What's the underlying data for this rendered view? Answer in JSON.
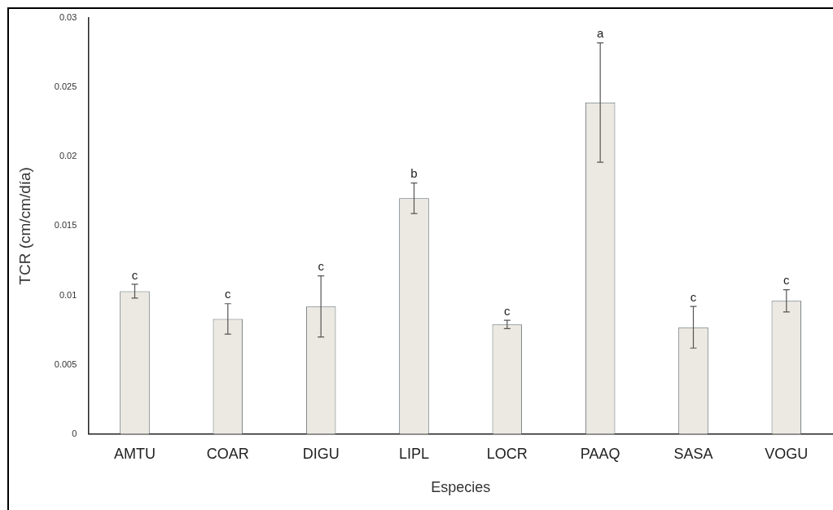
{
  "chart_data": {
    "type": "bar",
    "xlabel": "Especies",
    "ylabel": "TCR (cm/cm/día)",
    "categories": [
      "AMTU",
      "COAR",
      "DIGU",
      "LIPL",
      "LOCR",
      "PAAQ",
      "SASA",
      "VOGU"
    ],
    "series": [
      {
        "color": "#ebe9e1",
        "values": [
          0.0103,
          0.0083,
          0.0092,
          0.017,
          0.0079,
          0.0239,
          0.0077,
          0.0096
        ],
        "errors": [
          0.0005,
          0.0011,
          0.0022,
          0.0011,
          0.0003,
          0.0043,
          0.0015,
          0.0008
        ]
      }
    ],
    "ylim": [
      0,
      0.03
    ],
    "yticks": [
      0,
      0.005,
      0.01,
      0.015,
      0.02,
      0.025,
      0.03
    ],
    "grid": false,
    "legend": false,
    "annotations": [
      {
        "text": "c",
        "x": "AMTU",
        "y": 0.0108
      },
      {
        "text": "c",
        "x": "COAR",
        "y": 0.0094
      },
      {
        "text": "c",
        "x": "DIGU",
        "y": 0.0114
      },
      {
        "text": "b",
        "x": "LIPL",
        "y": 0.0181
      },
      {
        "text": "c",
        "x": "LOCR",
        "y": 0.0082
      },
      {
        "text": "a",
        "x": "PAAQ",
        "y": 0.0282
      },
      {
        "text": "c",
        "x": "SASA",
        "y": 0.0092
      },
      {
        "text": "c",
        "x": "VOGU",
        "y": 0.0104
      }
    ]
  }
}
